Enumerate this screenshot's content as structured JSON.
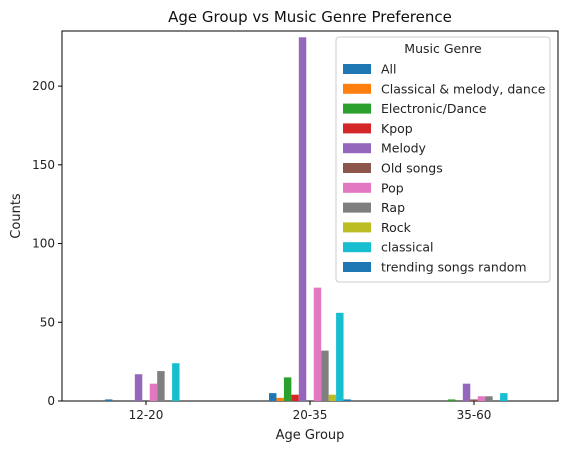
{
  "chart_data": {
    "type": "bar",
    "title": "Age Group vs Music Genre Preference",
    "xlabel": "Age Group",
    "ylabel": "Counts",
    "ylim": [
      0,
      235
    ],
    "yticks": [
      0,
      50,
      100,
      150,
      200
    ],
    "categories": [
      "12-20",
      "20-35",
      "35-60"
    ],
    "legend": {
      "title": "Music Genre",
      "placement": "upper-right"
    },
    "series": [
      {
        "name": "All",
        "color": "#1f77b4",
        "values": [
          1,
          5,
          0
        ]
      },
      {
        "name": "Classical & melody, dance",
        "color": "#ff7f0e",
        "values": [
          0,
          2,
          0
        ]
      },
      {
        "name": "Electronic/Dance",
        "color": "#2ca02c",
        "values": [
          0,
          15,
          1
        ]
      },
      {
        "name": "Kpop",
        "color": "#d62728",
        "values": [
          0,
          4,
          0
        ]
      },
      {
        "name": "Melody",
        "color": "#9467bd",
        "values": [
          17,
          231,
          11
        ]
      },
      {
        "name": "Old songs",
        "color": "#8c564b",
        "values": [
          0,
          0,
          1
        ]
      },
      {
        "name": "Pop",
        "color": "#e377c2",
        "values": [
          11,
          72,
          3
        ]
      },
      {
        "name": "Rap",
        "color": "#7f7f7f",
        "values": [
          19,
          32,
          3
        ]
      },
      {
        "name": "Rock",
        "color": "#bcbd22",
        "values": [
          0,
          4,
          0
        ]
      },
      {
        "name": "classical",
        "color": "#17becf",
        "values": [
          24,
          56,
          5
        ]
      },
      {
        "name": "trending songs random",
        "color": "#1f77b4",
        "values": [
          0,
          1,
          0
        ]
      }
    ]
  }
}
